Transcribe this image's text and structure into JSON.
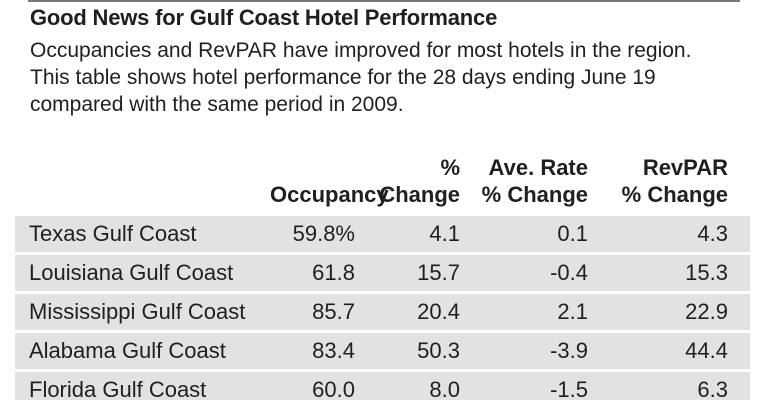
{
  "header": {
    "title": "Good News for Gulf Coast Hotel Performance",
    "subtitle": "Occupancies and RevPAR have improved for most hotels in the region. This table shows hotel performance for the 28 days ending June 19 compared with the same period in 2009."
  },
  "table": {
    "columns": [
      {
        "key": "region",
        "label_lines": [
          "",
          ""
        ]
      },
      {
        "key": "occupancy",
        "label_lines": [
          "",
          "Occupancy"
        ]
      },
      {
        "key": "occ_change",
        "label_lines": [
          "%",
          "Change"
        ]
      },
      {
        "key": "rate_change",
        "label_lines": [
          "Ave. Rate",
          "% Change"
        ]
      },
      {
        "key": "revpar_change",
        "label_lines": [
          "RevPAR",
          "% Change"
        ]
      }
    ],
    "rows": [
      {
        "region": "Texas Gulf Coast",
        "occupancy": "59.8%",
        "occ_change": "4.1",
        "rate_change": "0.1",
        "revpar_change": "4.3"
      },
      {
        "region": "Louisiana Gulf Coast",
        "occupancy": "61.8",
        "occ_change": "15.7",
        "rate_change": "-0.4",
        "revpar_change": "15.3"
      },
      {
        "region": "Mississippi Gulf Coast",
        "occupancy": "85.7",
        "occ_change": "20.4",
        "rate_change": "2.1",
        "revpar_change": "22.9"
      },
      {
        "region": "Alabama Gulf Coast",
        "occupancy": "83.4",
        "occ_change": "50.3",
        "rate_change": "-3.9",
        "revpar_change": "44.4"
      },
      {
        "region": "Florida Gulf Coast",
        "occupancy": "60.0",
        "occ_change": "8.0",
        "rate_change": "-1.5",
        "revpar_change": "6.3"
      }
    ]
  },
  "colors": {
    "row_background": "#e2e2e2",
    "text": "#1f1f1f",
    "rule": "#7a7a7a"
  }
}
